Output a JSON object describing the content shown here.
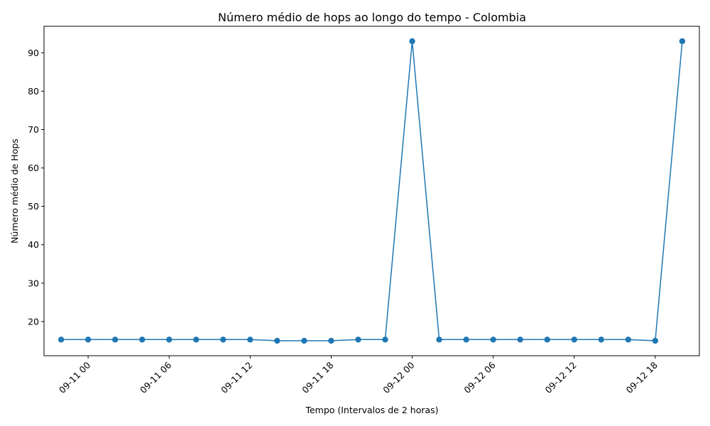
{
  "chart_data": {
    "type": "line",
    "title": "Número médio de hops ao longo do tempo - Colombia",
    "xlabel": "Tempo (Intervalos de 2 horas)",
    "ylabel": "Número médio de Hops",
    "grid": false,
    "x": [
      "09-10 22:00",
      "09-11 00:00",
      "09-11 02:00",
      "09-11 04:00",
      "09-11 06:00",
      "09-11 08:00",
      "09-11 10:00",
      "09-11 12:00",
      "09-11 14:00",
      "09-11 16:00",
      "09-11 18:00",
      "09-11 20:00",
      "09-11 22:00",
      "09-12 00:00",
      "09-12 02:00",
      "09-12 04:00",
      "09-12 06:00",
      "09-12 08:00",
      "09-12 10:00",
      "09-12 12:00",
      "09-12 14:00",
      "09-12 16:00",
      "09-12 18:00",
      "09-12 20:00"
    ],
    "xlim": [
      "09-10 20:44",
      "09-12 21:16"
    ],
    "x_ticks": [
      "09-11 00:00",
      "09-11 06:00",
      "09-11 12:00",
      "09-11 18:00",
      "09-12 00:00",
      "09-12 06:00",
      "09-12 12:00",
      "09-12 18:00"
    ],
    "x_tick_labels": [
      "09-11 00",
      "09-11 06",
      "09-11 12",
      "09-11 18",
      "09-12 00",
      "09-12 06",
      "09-12 12",
      "09-12 18"
    ],
    "series": [
      {
        "values": [
          15.3,
          15.3,
          15.3,
          15.3,
          15.3,
          15.3,
          15.3,
          15.3,
          15.0,
          15.0,
          15.0,
          15.3,
          15.3,
          93.0,
          15.3,
          15.3,
          15.3,
          15.3,
          15.3,
          15.3,
          15.3,
          15.3,
          15.0,
          93.0
        ],
        "color": "#1f77b4",
        "marker": "o"
      }
    ],
    "ylim": [
      11.1,
      96.9
    ],
    "y_ticks": [
      20,
      30,
      40,
      50,
      60,
      70,
      80,
      90
    ]
  }
}
